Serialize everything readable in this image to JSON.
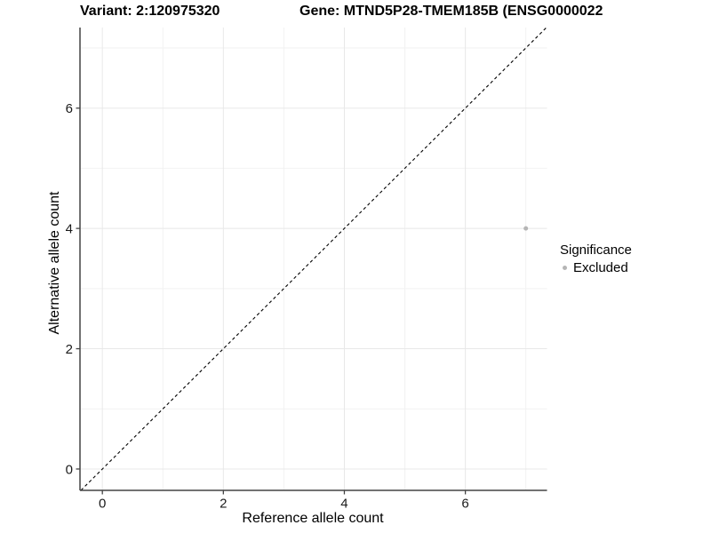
{
  "figure": {
    "background": "#ffffff"
  },
  "chart_data": {
    "type": "scatter",
    "titles": {
      "left": "Variant: 2:120975320",
      "right": "Gene: MTND5P28-TMEM185B (ENSG0000022"
    },
    "xlabel": "Reference allele count",
    "ylabel": "Alternative allele count",
    "xlim": [
      -0.37,
      7.35
    ],
    "ylim": [
      -0.355,
      7.34
    ],
    "x_major_ticks": [
      0,
      2,
      4,
      6
    ],
    "x_minor_gridlines": [
      1,
      3,
      5,
      7
    ],
    "y_major_ticks": [
      0,
      2,
      4,
      6
    ],
    "y_minor_gridlines": [
      1,
      3,
      5,
      7
    ],
    "grid": true,
    "identity_line": {
      "style": "dashed",
      "slope": 1,
      "intercept": 0,
      "color": "#000000"
    },
    "series": [
      {
        "name": "Excluded",
        "color": "#b5b5b5",
        "points": [
          {
            "x": 7,
            "y": 4
          }
        ]
      }
    ],
    "legend": {
      "title": "Significance",
      "position": "right",
      "items": [
        {
          "label": "Excluded",
          "color": "#b5b5b5"
        }
      ]
    },
    "style_colors": {
      "axis_line": "#444444",
      "major_grid": "#e8e8e8",
      "minor_grid": "#f2f2f2",
      "tick_text": "#1a1a1a"
    }
  }
}
